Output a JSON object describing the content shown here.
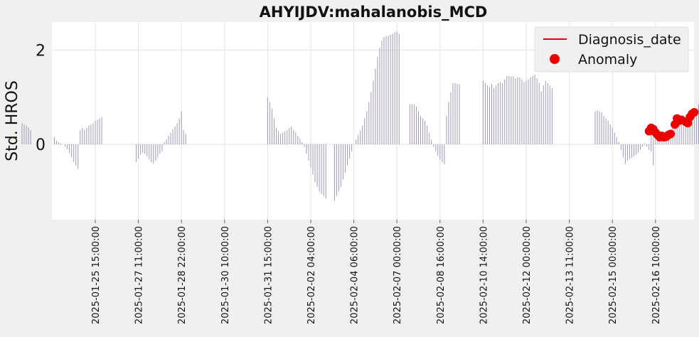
{
  "chart_data": {
    "type": "bar",
    "title": "AHYIJDV:mahalanobis_MCD",
    "ylabel": "Std. HROS",
    "xlabel": "",
    "ylim": [
      -1.6,
      2.6
    ],
    "yticks": [
      0,
      2
    ],
    "x_tick_labels": [
      "2025-01-25 15:00:00",
      "2025-01-27 11:00:00",
      "2025-01-28 22:00:00",
      "2025-01-30 10:00:00",
      "2025-01-31 15:00:00",
      "2025-02-02 04:00:00",
      "2025-02-04 06:00:00",
      "2025-02-07 00:00:00",
      "2025-02-08 16:00:00",
      "2025-02-10 14:00:00",
      "2025-02-12 00:00:00",
      "2025-02-13 11:00:00",
      "2025-02-15 00:00:00",
      "2025-02-16 10:00:00"
    ],
    "grid": true,
    "legend_position": "top-right",
    "series": [
      {
        "name": "",
        "color": "#9a9ab8",
        "segments": [
          {
            "start": -1.7,
            "values": [
              0.45,
              0.42,
              0.4,
              0.36,
              0.3
            ]
          },
          {
            "start": -0.95,
            "values": [
              0.15,
              0.08,
              0.05,
              0.02,
              0,
              -0.05,
              -0.1,
              -0.18,
              -0.28,
              -0.38,
              -0.45,
              -0.52,
              0.3,
              0.35,
              0.3,
              0.35,
              0.4,
              0.42,
              0.45,
              0.5,
              0.52,
              0.55,
              0.58
            ]
          },
          {
            "start": 0.95,
            "values": [
              -0.38,
              -0.3,
              -0.22,
              -0.18,
              -0.2,
              -0.25,
              -0.32,
              -0.38,
              -0.4,
              -0.35,
              -0.28,
              -0.2,
              -0.15,
              0.05,
              0.1,
              0.18,
              0.25,
              0.32,
              0.38,
              0.45,
              0.55,
              0.7,
              0.3,
              0.22
            ]
          },
          {
            "start": 4.0,
            "values": [
              1.0,
              0.9,
              0.75,
              0.55,
              0.35,
              0.28,
              0.22,
              0.25,
              0.28,
              0.3,
              0.35,
              0.38,
              0.3,
              0.25,
              0.18,
              0.12,
              0.05,
              -0.05,
              -0.2,
              -0.35,
              -0.5,
              -0.65,
              -0.8,
              -0.9,
              -1.0,
              -1.05,
              -1.1,
              -1.15
            ]
          },
          {
            "start": 5.55,
            "values": [
              -1.2,
              -1.1,
              -1.0,
              -0.9,
              -0.75,
              -0.6,
              -0.45,
              -0.3,
              -0.15,
              0,
              0.1,
              0.2,
              0.3,
              0.4,
              0.55,
              0.7,
              0.9,
              1.1,
              1.35,
              1.6,
              1.85,
              2.05,
              2.2,
              2.28,
              2.3,
              2.3,
              2.32,
              2.35,
              2.38,
              2.4,
              2.35
            ]
          },
          {
            "start": 7.3,
            "values": [
              0.85,
              0.85,
              0.85,
              0.8,
              0.7,
              0.6,
              0.55,
              0.5,
              0.4,
              0.25,
              0.1,
              -0.05,
              -0.15,
              -0.25,
              -0.32,
              -0.38,
              -0.42,
              0.6,
              0.9,
              1.1,
              1.3,
              1.3,
              1.28,
              1.27
            ]
          },
          {
            "start": 9.0,
            "values": [
              1.35,
              1.3,
              1.25,
              1.22,
              1.28,
              1.2,
              1.25,
              1.3,
              1.32,
              1.3,
              1.38,
              1.45,
              1.45,
              1.44,
              1.44,
              1.4,
              1.42,
              1.42,
              1.38,
              1.32,
              1.35,
              1.38,
              1.42,
              1.45,
              1.48,
              1.4,
              1.3,
              1.12,
              1.25,
              1.35,
              1.3,
              1.25,
              1.2
            ]
          },
          {
            "start": 11.6,
            "values": [
              0.7,
              0.72,
              0.7,
              0.68,
              0.6,
              0.55,
              0.5,
              0.42,
              0.35,
              0.25,
              0.15,
              0.05,
              -0.12,
              -0.28,
              -0.42,
              -0.35,
              -0.3,
              -0.28,
              -0.25,
              -0.22,
              -0.18,
              -0.12,
              -0.05,
              0.02,
              -0.05,
              -0.12,
              -0.15,
              -0.45
            ]
          },
          {
            "start": 12.9,
            "values": [
              0.22,
              0.25,
              0.28,
              0.2,
              0.15,
              0.12,
              0.15,
              0.18,
              0.22,
              0.28,
              0.35,
              0.42,
              0.5,
              0.55,
              0.52,
              0.48,
              0.45,
              0.5,
              0.55,
              0.6,
              0.65,
              0.75,
              0.85,
              1.0,
              1.08,
              1.1,
              1.05,
              0.5,
              0.45,
              0.42
            ]
          }
        ]
      }
    ],
    "diagnosis_date": {
      "name": "Diagnosis_date",
      "x": 14.2,
      "color": "#dd0000"
    },
    "anomalies": {
      "name": "Anomaly",
      "color": "#ee0000",
      "points": [
        {
          "x": 12.85,
          "y": 0.28
        },
        {
          "x": 12.9,
          "y": 0.35
        },
        {
          "x": 12.95,
          "y": 0.32
        },
        {
          "x": 13.0,
          "y": 0.25
        },
        {
          "x": 13.05,
          "y": 0.2
        },
        {
          "x": 13.1,
          "y": 0.15
        },
        {
          "x": 13.15,
          "y": 0.18
        },
        {
          "x": 13.2,
          "y": 0.15
        },
        {
          "x": 13.25,
          "y": 0.16
        },
        {
          "x": 13.3,
          "y": 0.2
        },
        {
          "x": 13.35,
          "y": 0.22
        },
        {
          "x": 13.45,
          "y": 0.42
        },
        {
          "x": 13.5,
          "y": 0.55
        },
        {
          "x": 13.55,
          "y": 0.5
        },
        {
          "x": 13.6,
          "y": 0.52
        },
        {
          "x": 13.7,
          "y": 0.48
        },
        {
          "x": 13.75,
          "y": 0.45
        },
        {
          "x": 13.8,
          "y": 0.58
        },
        {
          "x": 13.85,
          "y": 0.65
        },
        {
          "x": 13.9,
          "y": 0.68
        },
        {
          "x": 14.2,
          "y": 0.42
        }
      ]
    }
  }
}
